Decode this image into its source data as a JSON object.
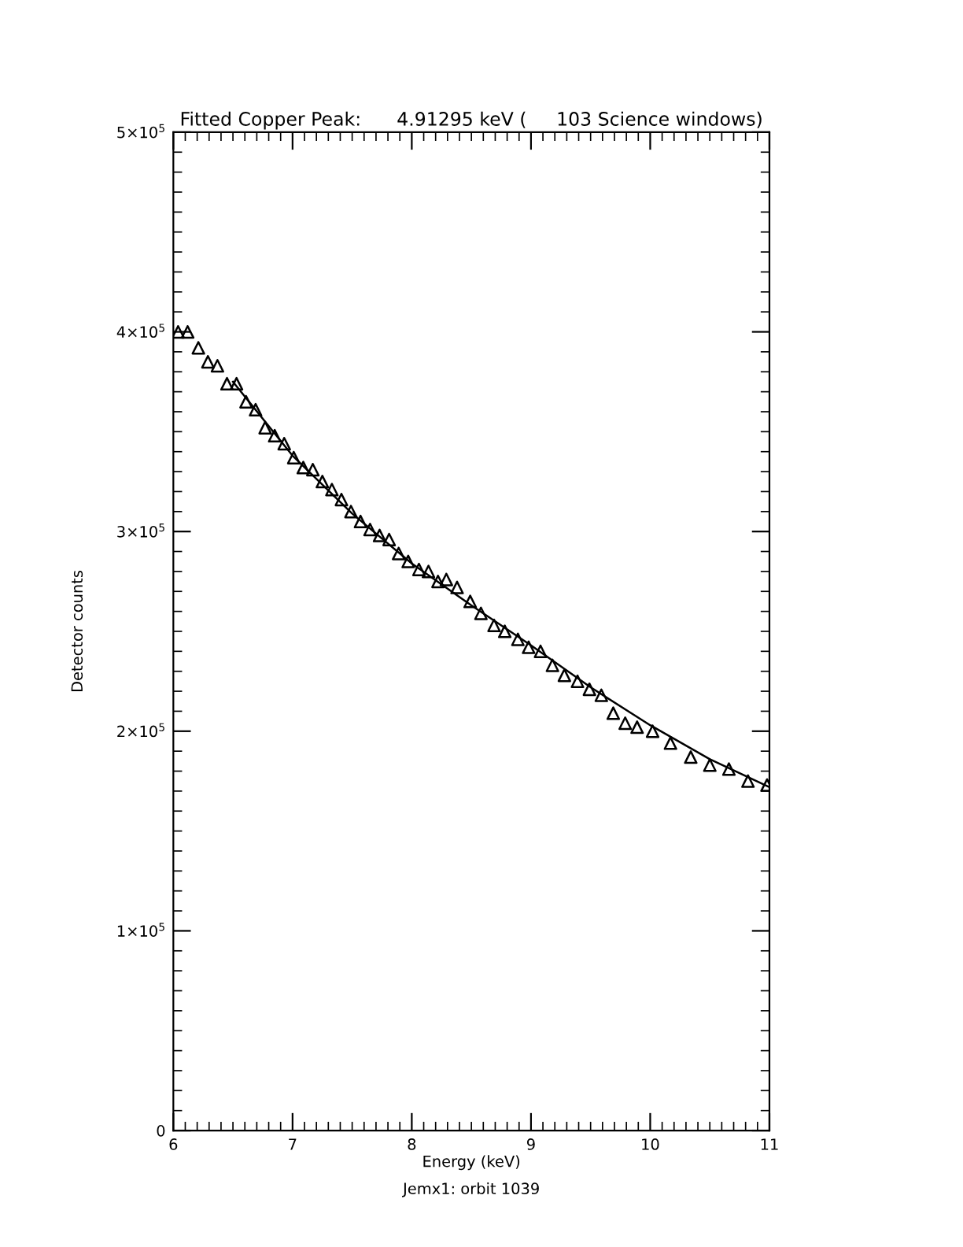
{
  "chart_data": {
    "type": "scatter",
    "title": "Fitted Copper Peak:      4.91295 keV (     103 Science windows)",
    "xlabel": "Energy (keV)",
    "ylabel": "Detector counts",
    "annotations": [
      "Jemx1: orbit 1039"
    ],
    "xlim": [
      6,
      11
    ],
    "xticks": [
      6,
      7,
      8,
      9,
      10,
      11
    ],
    "ylim": [
      0,
      500000
    ],
    "yticks": [
      0,
      {
        "value": 100000,
        "label": "1×10$^{5}$"
      },
      {
        "value": 200000,
        "label": "2×10$^{5}$"
      },
      {
        "value": 300000,
        "label": "3×10$^{5}$"
      },
      {
        "value": 400000,
        "label": "4×10$^{5}$"
      },
      {
        "value": 500000,
        "label": "5×10$^{5}$"
      }
    ],
    "series": [
      {
        "marker": "triangle",
        "color": "#000000",
        "x": [
          6.04,
          6.12,
          6.21,
          6.29,
          6.37,
          6.45,
          6.53,
          6.61,
          6.69,
          6.77,
          6.85,
          6.93,
          7.01,
          7.09,
          7.17,
          7.25,
          7.33,
          7.41,
          7.49,
          7.57,
          7.65,
          7.73,
          7.81,
          7.89,
          7.97,
          8.06,
          8.14,
          8.22,
          8.29,
          8.38,
          8.49,
          8.58,
          8.69,
          8.78,
          8.89,
          8.98,
          9.08,
          9.18,
          9.28,
          9.39,
          9.49,
          9.59,
          9.69,
          9.79,
          9.89,
          10.02,
          10.17,
          10.34,
          10.5,
          10.66,
          10.82,
          10.98
        ],
        "values": [
          400000,
          400000,
          392000,
          385000,
          383000,
          374000,
          374000,
          365000,
          361000,
          352000,
          348000,
          344000,
          337000,
          332000,
          331000,
          325000,
          321000,
          316000,
          310000,
          305000,
          301000,
          298000,
          296000,
          289000,
          285000,
          281000,
          280000,
          275000,
          276000,
          272000,
          265000,
          259000,
          253000,
          250000,
          246000,
          242000,
          240000,
          233000,
          228000,
          225000,
          221000,
          218000,
          209000,
          204000,
          202000,
          200000,
          194000,
          187000,
          183000,
          181000,
          175000,
          173000
        ]
      },
      {
        "type": "line",
        "color": "#000000",
        "x": [
          6.5,
          7.0,
          7.5,
          8.0,
          8.5,
          9.0,
          9.5,
          10.0,
          10.5,
          11.0
        ],
        "values": [
          375000,
          338000,
          309000,
          284000,
          263000,
          243000,
          222000,
          203000,
          186000,
          172000
        ]
      }
    ]
  }
}
